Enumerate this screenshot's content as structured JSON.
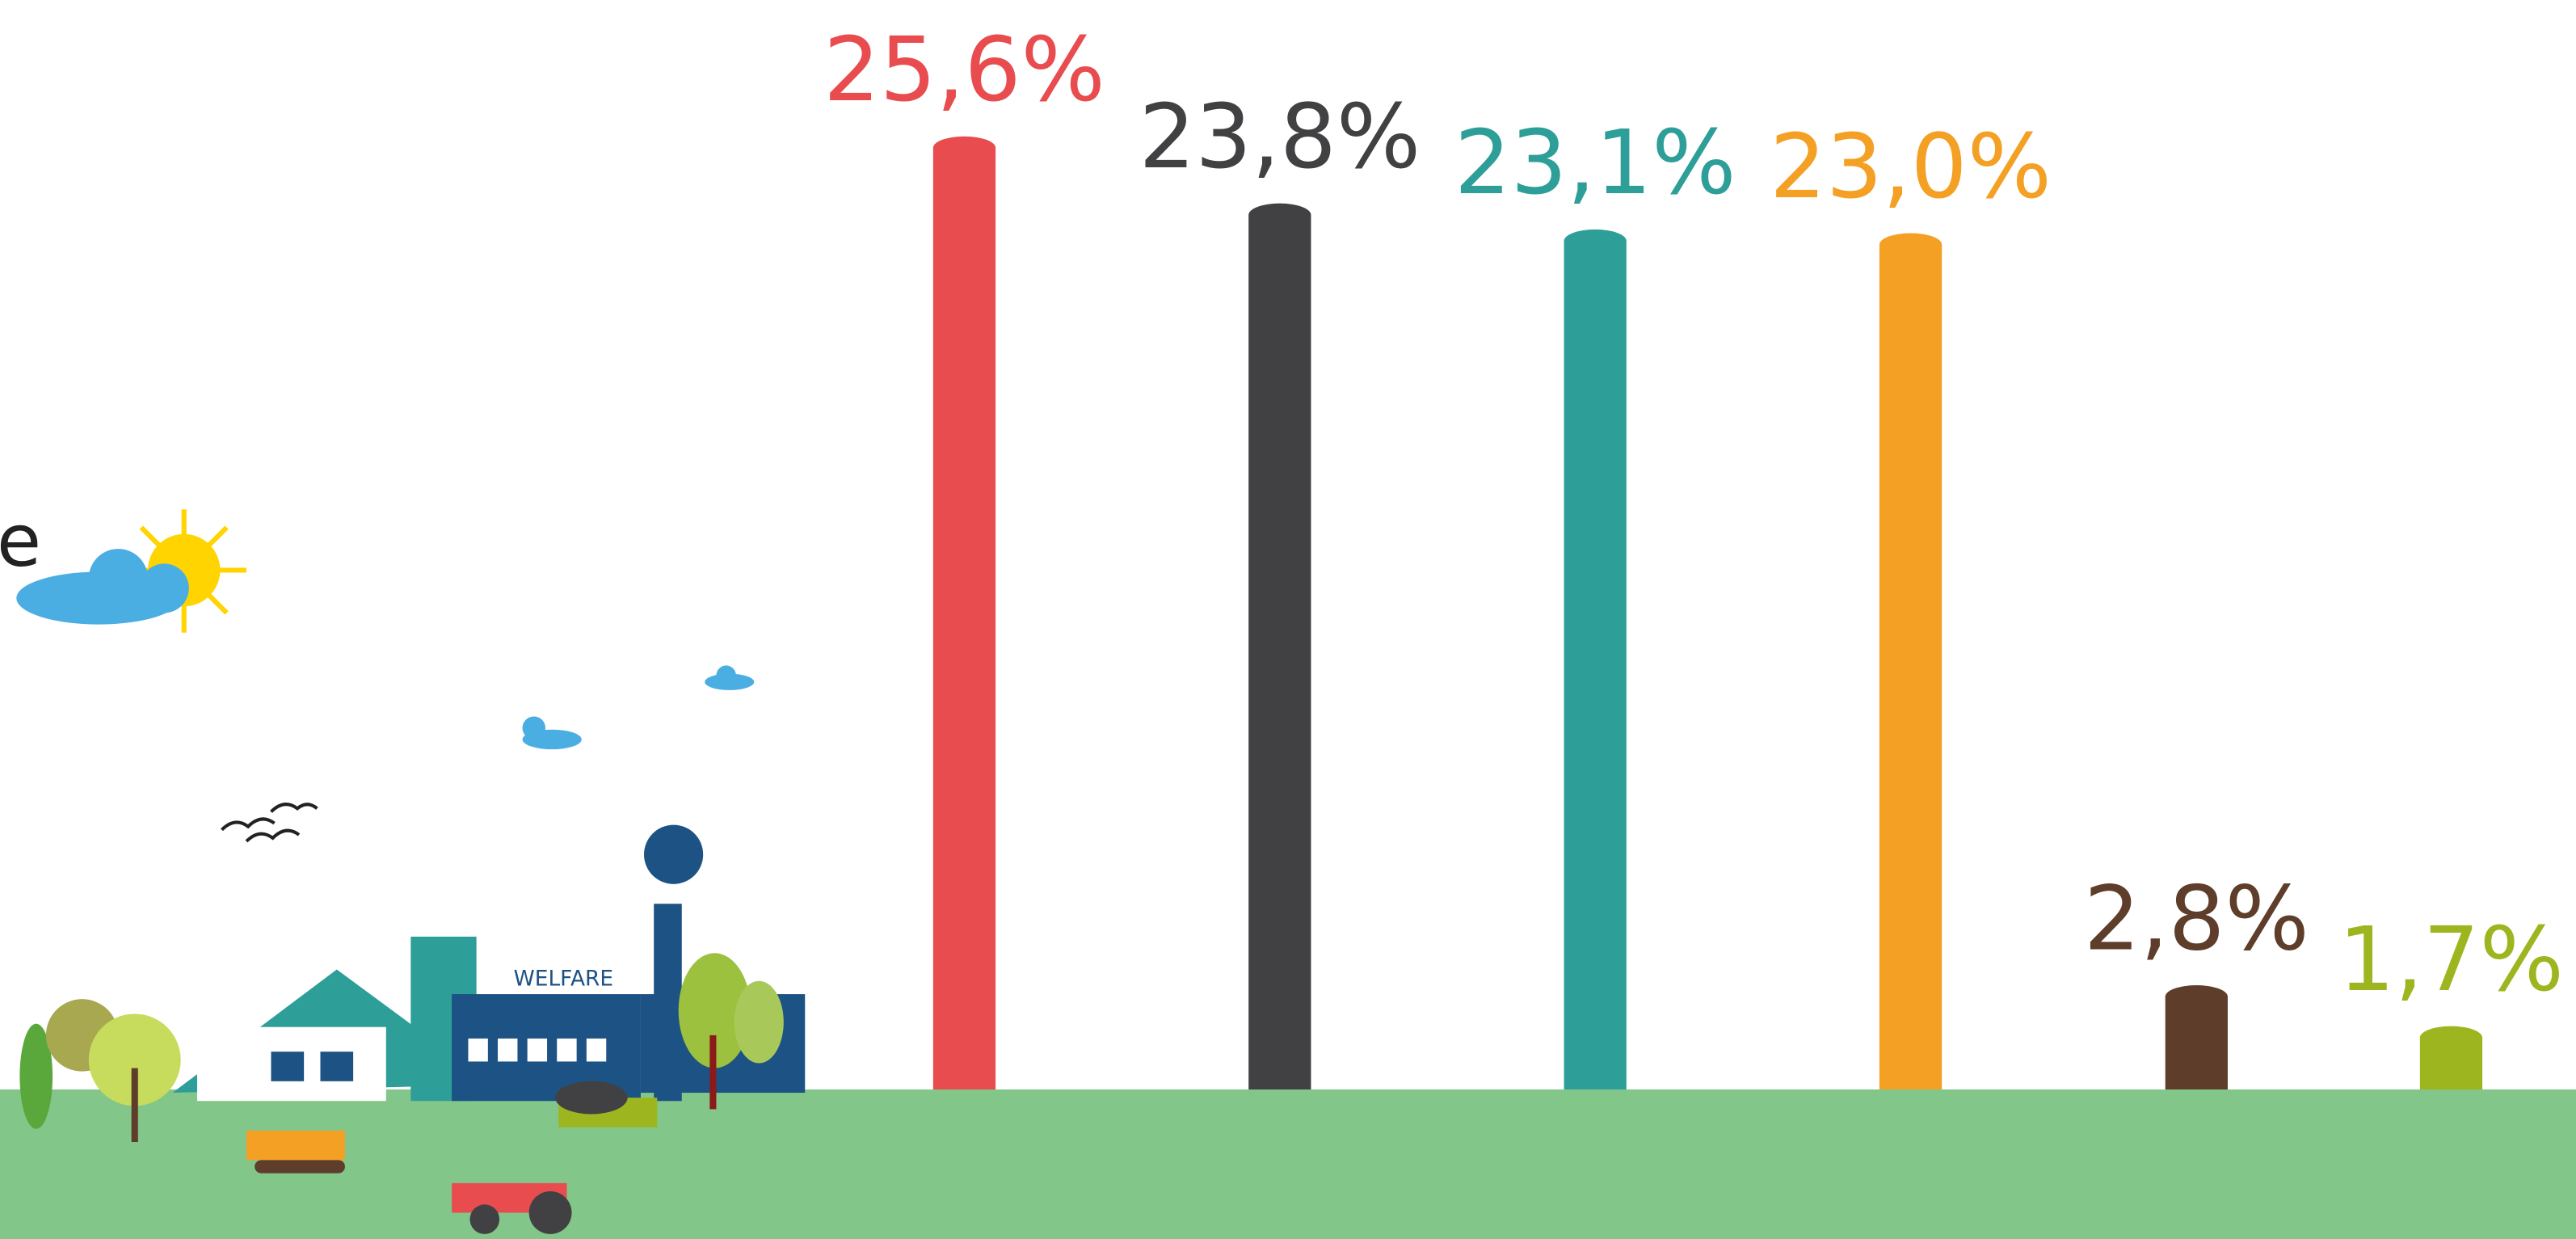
{
  "chart_data": {
    "type": "bar",
    "categories": [
      null,
      null,
      null,
      null,
      null,
      null
    ],
    "series": [
      {
        "values": [
          25.6,
          23.8,
          23.1,
          23.0,
          2.8,
          1.7
        ],
        "value_labels": [
          "25,6%",
          "23,8%",
          "23,1%",
          "23,0%",
          "2,8%",
          "1,7%"
        ],
        "colors": [
          "#e84c4f",
          "#414042",
          "#2e9e98",
          "#f3a024",
          "#5e3d2a",
          "#9db51f"
        ]
      }
    ]
  },
  "illustration": {
    "factory_sign": "WELFARE",
    "cropped_text": "e"
  }
}
